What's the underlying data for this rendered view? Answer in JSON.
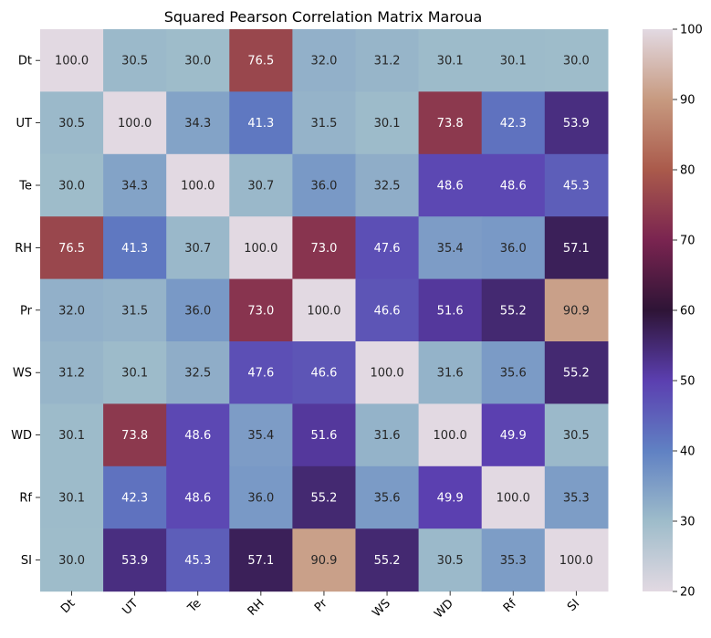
{
  "chart_data": {
    "type": "heatmap",
    "title": "Squared Pearson Correlation Matrix Maroua",
    "xlabel": "",
    "ylabel": "",
    "rows": [
      "Dt",
      "UT",
      "Te",
      "RH",
      "Pr",
      "WS",
      "WD",
      "Rf",
      "SI"
    ],
    "columns": [
      "Dt",
      "UT",
      "Te",
      "RH",
      "Pr",
      "WS",
      "WD",
      "Rf",
      "SI"
    ],
    "values": [
      [
        100.0,
        30.5,
        30.0,
        76.5,
        32.0,
        31.2,
        30.1,
        30.1,
        30.0
      ],
      [
        30.5,
        100.0,
        34.3,
        41.3,
        31.5,
        30.1,
        73.8,
        42.3,
        53.9
      ],
      [
        30.0,
        34.3,
        100.0,
        30.7,
        36.0,
        32.5,
        48.6,
        48.6,
        45.3
      ],
      [
        76.5,
        41.3,
        30.7,
        100.0,
        73.0,
        47.6,
        35.4,
        36.0,
        57.1
      ],
      [
        32.0,
        31.5,
        36.0,
        73.0,
        100.0,
        46.6,
        51.6,
        55.2,
        90.9
      ],
      [
        31.2,
        30.1,
        32.5,
        47.6,
        46.6,
        100.0,
        31.6,
        35.6,
        55.2
      ],
      [
        30.1,
        73.8,
        48.6,
        35.4,
        51.6,
        31.6,
        100.0,
        49.9,
        30.5
      ],
      [
        30.1,
        42.3,
        48.6,
        36.0,
        55.2,
        35.6,
        49.9,
        100.0,
        35.3
      ],
      [
        30.0,
        53.9,
        45.3,
        57.1,
        90.9,
        55.2,
        30.5,
        35.3,
        100.0
      ]
    ],
    "value_format": "0.0",
    "colorbar": {
      "range": [
        20,
        100
      ],
      "ticks": [
        20,
        30,
        40,
        50,
        60,
        70,
        80,
        90,
        100
      ],
      "colormap": "twilight",
      "stops": [
        {
          "v": 20,
          "color": "#e2d9e2"
        },
        {
          "v": 30,
          "color": "#9ebcca"
        },
        {
          "v": 40,
          "color": "#6081c3"
        },
        {
          "v": 50,
          "color": "#5b3fb0"
        },
        {
          "v": 60,
          "color": "#2e1436"
        },
        {
          "v": 70,
          "color": "#7a2450"
        },
        {
          "v": 80,
          "color": "#aa5a4b"
        },
        {
          "v": 90,
          "color": "#c79a80"
        },
        {
          "v": 100,
          "color": "#e2d9e2"
        }
      ]
    },
    "grid": false
  }
}
